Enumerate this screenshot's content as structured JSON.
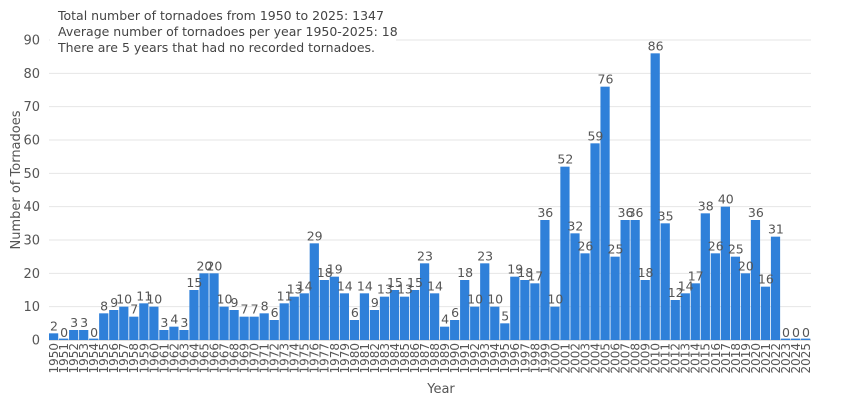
{
  "chart_data": {
    "type": "bar",
    "title": "",
    "xlabel": "Year",
    "ylabel": "Number of Tornadoes",
    "ylim": [
      0,
      90
    ],
    "yticks": [
      0,
      10,
      20,
      30,
      40,
      50,
      60,
      70,
      80,
      90
    ],
    "grid": "horizontal",
    "legend": "none",
    "bar_color": "#2f80d9",
    "annotations": [
      "Total number of tornadoes from 1950 to 2025: 1347",
      "Average number of tornadoes per year 1950-2025: 18",
      "There are 5 years that had no recorded tornadoes."
    ],
    "categories": [
      "1950",
      "1951",
      "1952",
      "1953",
      "1954",
      "1955",
      "1956",
      "1957",
      "1958",
      "1959",
      "1960",
      "1961",
      "1962",
      "1963",
      "1964",
      "1965",
      "1966",
      "1967",
      "1968",
      "1969",
      "1970",
      "1971",
      "1972",
      "1973",
      "1974",
      "1975",
      "1976",
      "1977",
      "1978",
      "1979",
      "1980",
      "1981",
      "1982",
      "1983",
      "1984",
      "1985",
      "1986",
      "1987",
      "1988",
      "1989",
      "1990",
      "1991",
      "1992",
      "1993",
      "1994",
      "1995",
      "1996",
      "1997",
      "1998",
      "1999",
      "2000",
      "2001",
      "2002",
      "2003",
      "2004",
      "2005",
      "2006",
      "2007",
      "2008",
      "2009",
      "2010",
      "2011",
      "2012",
      "2013",
      "2014",
      "2015",
      "2016",
      "2017",
      "2018",
      "2019",
      "2020",
      "2021",
      "2022",
      "2023",
      "2024",
      "2025"
    ],
    "values": [
      2,
      0,
      3,
      3,
      0,
      8,
      9,
      10,
      7,
      11,
      10,
      3,
      4,
      3,
      15,
      20,
      20,
      10,
      9,
      7,
      7,
      8,
      6,
      11,
      13,
      14,
      29,
      18,
      19,
      14,
      6,
      14,
      9,
      13,
      15,
      13,
      15,
      23,
      14,
      4,
      6,
      18,
      10,
      23,
      10,
      5,
      19,
      18,
      17,
      36,
      10,
      52,
      32,
      26,
      59,
      76,
      25,
      36,
      36,
      18,
      86,
      35,
      12,
      14,
      17,
      38,
      26,
      40,
      25,
      20,
      36,
      16,
      31,
      0,
      0,
      0
    ]
  }
}
